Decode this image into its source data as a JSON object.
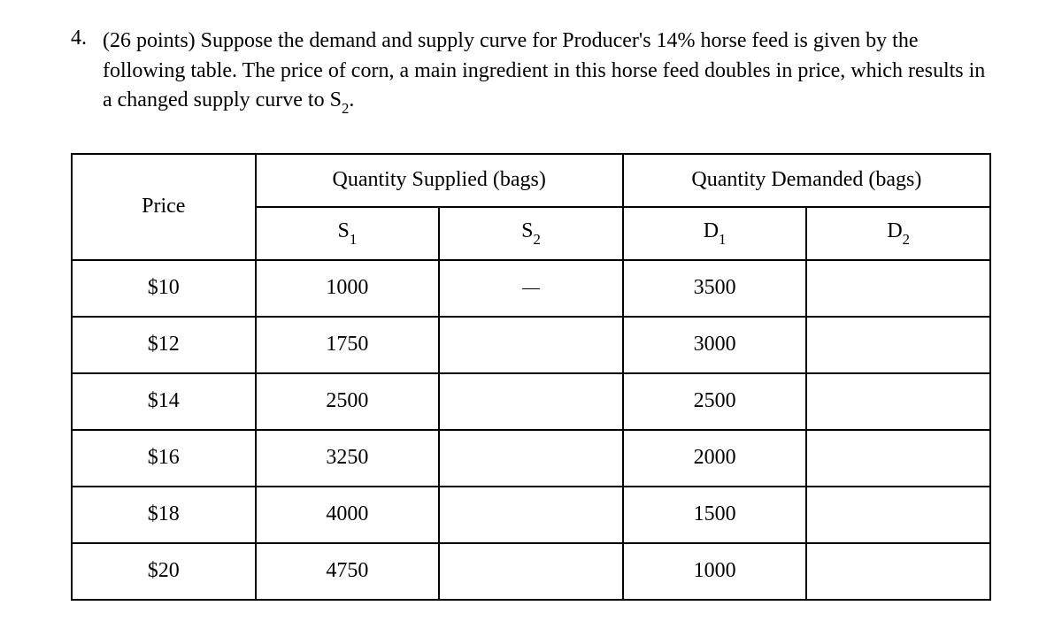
{
  "question": {
    "number": "4.",
    "points_prefix": "(26 points) ",
    "text_part1": "Suppose the demand and supply curve for Producer's 14% horse feed is given by the following table. The price of corn, a main ingredient in this horse feed doubles in price, which results in a changed supply curve to S",
    "text_sub": "2",
    "text_end": "."
  },
  "table": {
    "headers": {
      "price": "Price",
      "qty_supplied": "Quantity Supplied (bags)",
      "qty_demanded": "Quantity Demanded (bags)",
      "s1_base": "S",
      "s1_sub": "1",
      "s2_base": "S",
      "s2_sub": "2",
      "d1_base": "D",
      "d1_sub": "1",
      "d2_base": "D",
      "d2_sub": "2"
    },
    "rows": [
      {
        "price": "$10",
        "s1": "1000",
        "s2": "—",
        "d1": "3500",
        "d2": ""
      },
      {
        "price": "$12",
        "s1": "1750",
        "s2": "",
        "d1": "3000",
        "d2": ""
      },
      {
        "price": "$14",
        "s1": "2500",
        "s2": "",
        "d1": "2500",
        "d2": ""
      },
      {
        "price": "$16",
        "s1": "3250",
        "s2": "",
        "d1": "2000",
        "d2": ""
      },
      {
        "price": "$18",
        "s1": "4000",
        "s2": "",
        "d1": "1500",
        "d2": ""
      },
      {
        "price": "$20",
        "s1": "4750",
        "s2": "",
        "d1": "1000",
        "d2": ""
      }
    ]
  },
  "styling": {
    "border_color": "#000000",
    "background_color": "#ffffff",
    "font_family": "Times New Roman",
    "main_fontsize": 24,
    "border_width": 2
  }
}
